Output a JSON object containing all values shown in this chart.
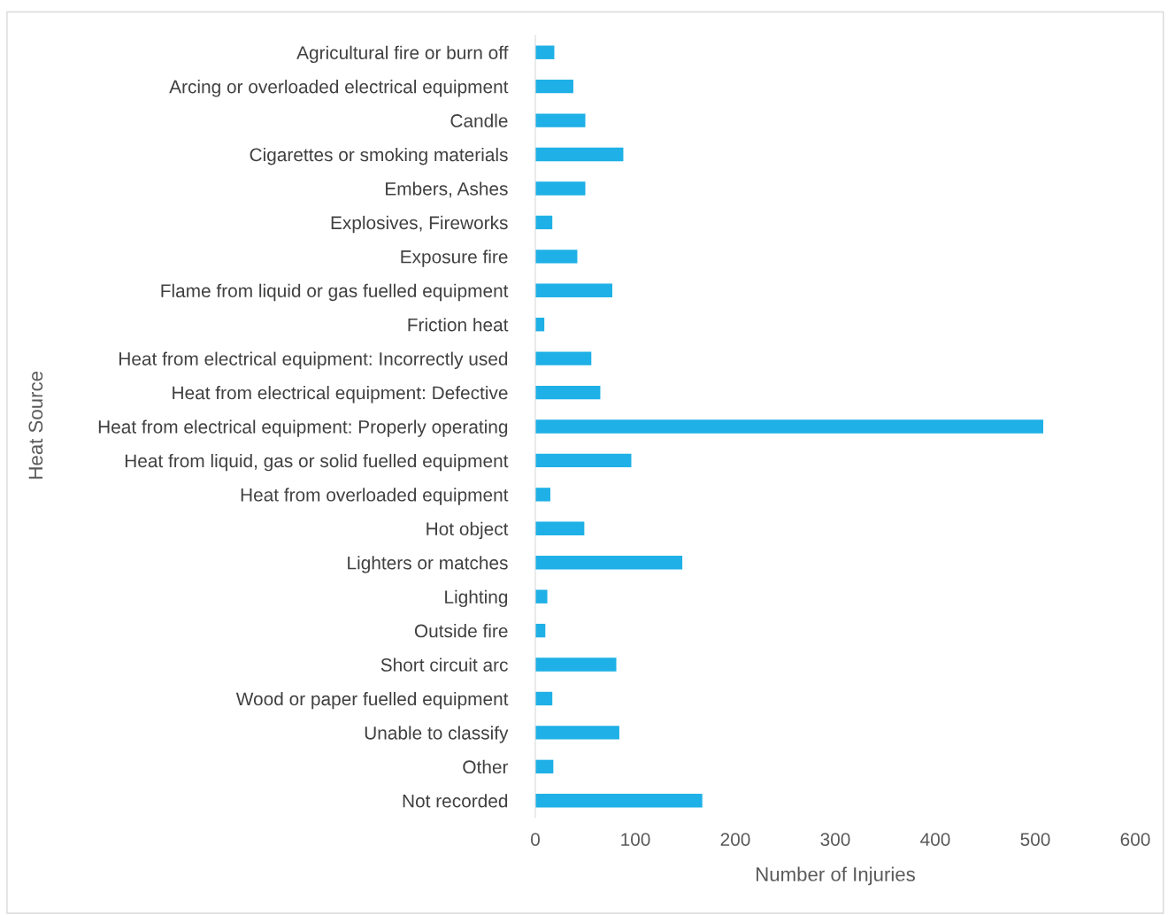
{
  "chart_data": {
    "type": "bar",
    "orientation": "horizontal",
    "xlabel": "Number of Injuries",
    "ylabel": "Heat Source",
    "categories": [
      "Agricultural fire or burn off",
      "Arcing or overloaded electrical equipment",
      "Candle",
      "Cigarettes or smoking materials",
      "Embers, Ashes",
      "Explosives, Fireworks",
      "Exposure fire",
      "Flame from liquid or gas fuelled equipment",
      "Friction heat",
      "Heat from electrical equipment: Incorrectly used",
      "Heat from electrical equipment: Defective",
      "Heat from electrical equipment: Properly operating",
      "Heat from liquid, gas or solid fuelled equipment",
      "Heat from overloaded equipment",
      "Hot object",
      "Lighters or matches",
      "Lighting",
      "Outside fire",
      "Short circuit arc",
      "Wood or paper fuelled equipment",
      "Unable to classify",
      "Other",
      "Not recorded"
    ],
    "values": [
      19,
      38,
      50,
      88,
      50,
      17,
      42,
      77,
      9,
      56,
      65,
      508,
      96,
      15,
      49,
      147,
      12,
      10,
      81,
      17,
      84,
      18,
      167
    ],
    "color": "#1eb0e6",
    "xlim": [
      0,
      600
    ],
    "xticks": [
      0,
      100,
      200,
      300,
      400,
      500,
      600
    ],
    "grid": false,
    "legend": false
  }
}
